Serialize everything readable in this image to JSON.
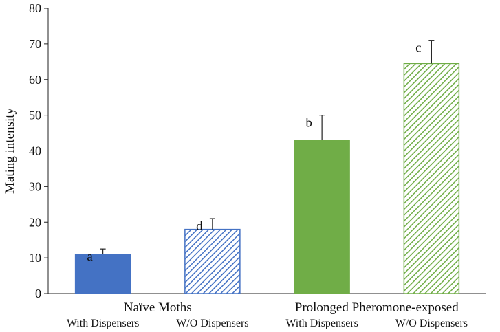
{
  "chart_data": {
    "type": "bar",
    "ylabel": "Mating intensity",
    "ylim": [
      0,
      80
    ],
    "yticks": [
      0,
      10,
      20,
      30,
      40,
      50,
      60,
      70,
      80
    ],
    "groups": [
      {
        "label": "Naïve Moths",
        "categories": [
          "With Dispensers",
          "W/O Dispensers"
        ]
      },
      {
        "label": "Prolonged Pheromone-exposed",
        "categories": [
          "With Dispensers",
          "W/O Dispensers"
        ]
      }
    ],
    "categories": [
      "With Dispensers",
      "W/O Dispensers",
      "With Dispensers",
      "W/O Dispensers"
    ],
    "values": [
      11,
      18,
      43,
      64.5
    ],
    "errors": [
      1.5,
      3,
      7,
      6.5
    ],
    "significance_letters": [
      "a",
      "d",
      "b",
      "c"
    ],
    "bar_colors": [
      "#4472c4",
      "#4472c4",
      "#70ad47",
      "#70ad47"
    ],
    "bar_fill": [
      "solid",
      "hatched",
      "solid",
      "hatched"
    ],
    "grid": false,
    "legend": "none"
  }
}
